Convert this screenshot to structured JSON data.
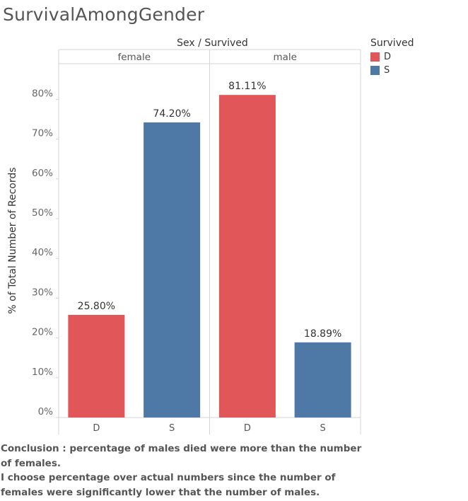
{
  "title": "SurvivalAmongGender",
  "legend": {
    "title": "Survived",
    "items": [
      {
        "label": "D",
        "color": "#e15759"
      },
      {
        "label": "S",
        "color": "#4e79a7"
      }
    ]
  },
  "caption": {
    "line1": "Conclusion : percentage of males died were more than the number of females.",
    "line2": "I choose percentage over actual numbers since the number of females were significantly lower that the number of males."
  },
  "chart_data": {
    "type": "bar",
    "title": "SurvivalAmongGender",
    "column_header": "Sex / Survived",
    "ylabel": "% of Total Number of Records",
    "xlabel": "",
    "ylim": [
      0,
      85
    ],
    "yticks": [
      0,
      10,
      20,
      30,
      40,
      50,
      60,
      70,
      80
    ],
    "ytick_labels": [
      "0%",
      "10%",
      "20%",
      "30%",
      "40%",
      "50%",
      "60%",
      "70%",
      "80%"
    ],
    "grid": false,
    "legend_position": "top-right",
    "panels": [
      {
        "name": "female",
        "bars": [
          {
            "category": "D",
            "value": 25.8,
            "label": "25.80%",
            "color": "#e15759"
          },
          {
            "category": "S",
            "value": 74.2,
            "label": "74.20%",
            "color": "#4e79a7"
          }
        ]
      },
      {
        "name": "male",
        "bars": [
          {
            "category": "D",
            "value": 81.11,
            "label": "81.11%",
            "color": "#e15759"
          },
          {
            "category": "S",
            "value": 18.89,
            "label": "18.89%",
            "color": "#4e79a7"
          }
        ]
      }
    ]
  }
}
